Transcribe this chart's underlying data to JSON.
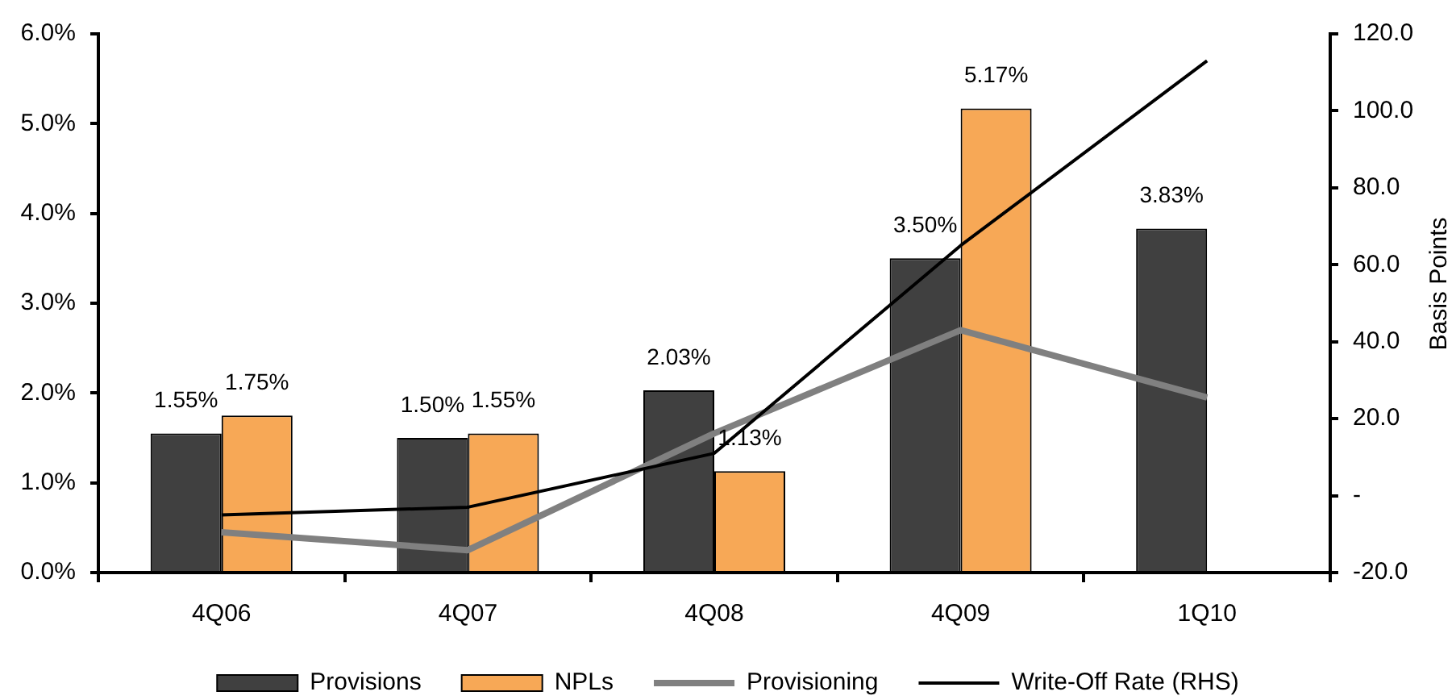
{
  "chart_data": {
    "type": "bar",
    "categories": [
      "4Q06",
      "4Q07",
      "4Q08",
      "4Q09",
      "1Q10"
    ],
    "series": [
      {
        "name": "Provisions",
        "color": "#404040",
        "values": [
          1.55,
          1.5,
          2.03,
          3.5,
          3.83
        ],
        "value_labels": [
          "1.55%",
          "1.50%",
          "2.03%",
          "3.50%",
          "3.83%"
        ]
      },
      {
        "name": "NPLs",
        "color": "#f7a856",
        "values": [
          1.75,
          1.55,
          1.13,
          5.17,
          null
        ],
        "value_labels": [
          "1.75%",
          "1.55%",
          "1.13%",
          "5.17%",
          null
        ]
      },
      {
        "name": "Provisioning",
        "type": "line",
        "color": "#808080",
        "values": [
          0.45,
          0.25,
          1.55,
          2.7,
          1.95
        ]
      },
      {
        "name": "Write-Off Rate (RHS)",
        "type": "line",
        "color": "#000000",
        "axis": "y2",
        "values": [
          -5,
          -3,
          11,
          65,
          113
        ]
      }
    ],
    "ylim": [
      0,
      6
    ],
    "yticks": [
      {
        "value": 0,
        "label": "0.0%"
      },
      {
        "value": 1,
        "label": "1.0%"
      },
      {
        "value": 2,
        "label": "2.0%"
      },
      {
        "value": 3,
        "label": "3.0%"
      },
      {
        "value": 4,
        "label": "4.0%"
      },
      {
        "value": 5,
        "label": "5.0%"
      },
      {
        "value": 6,
        "label": "6.0%"
      }
    ],
    "y2lim": [
      -20,
      120
    ],
    "y2ticks": [
      {
        "value": -20,
        "label": "-20.0"
      },
      {
        "value": 0,
        "label": "-"
      },
      {
        "value": 20,
        "label": "20.0"
      },
      {
        "value": 40,
        "label": "40.0"
      },
      {
        "value": 60,
        "label": "60.0"
      },
      {
        "value": 80,
        "label": "80.0"
      },
      {
        "value": 100,
        "label": "100.0"
      },
      {
        "value": 120,
        "label": "120.0"
      }
    ],
    "y2label": "Basis Points",
    "legend": "bottom",
    "marker": "none"
  }
}
